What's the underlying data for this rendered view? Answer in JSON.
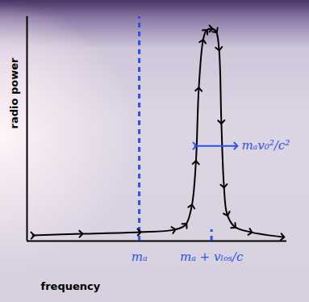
{
  "chart_data": {
    "type": "line",
    "xlabel": "frequency",
    "ylabel": "radio power",
    "xlim": [
      0,
      100
    ],
    "ylim": [
      0,
      100
    ],
    "xticks": [
      {
        "value": 43.2,
        "label": "mₐ"
      },
      {
        "value": 71,
        "label": "mₐ + vₗₒₛ/c"
      }
    ],
    "yticks": [],
    "tick_labels": "x",
    "grid": false,
    "series": [
      {
        "color": "#000000",
        "marker": "arrow",
        "x": [
          2.2,
          20.8,
          43.2,
          56.5,
          61,
          63.4,
          65,
          66.1,
          67.7,
          68.9,
          70.8,
          72.7,
          73.9,
          74.8,
          75.8,
          77,
          79.8,
          86,
          98.4
        ],
        "values": [
          2.5,
          3.2,
          4,
          5,
          7.2,
          15.5,
          35,
          67.6,
          89,
          93.5,
          94.6,
          93.5,
          85.6,
          53,
          24.5,
          12,
          6.5,
          4,
          1.8
        ]
      }
    ],
    "reference_lines": [
      {
        "x": 43.2,
        "y": [
          0,
          100
        ],
        "color": "#2a52e8",
        "line_style": "dashed"
      },
      {
        "x": 71,
        "y": [
          0,
          5
        ],
        "color": "#2a52e8",
        "line_style": "dashed"
      }
    ],
    "annotations": [
      {
        "text": "mₐv₀²/c²",
        "x": [
          64.6,
          80.4
        ],
        "y": 42.4,
        "color": "#2a52e8",
        "marker": "arrow"
      }
    ]
  }
}
